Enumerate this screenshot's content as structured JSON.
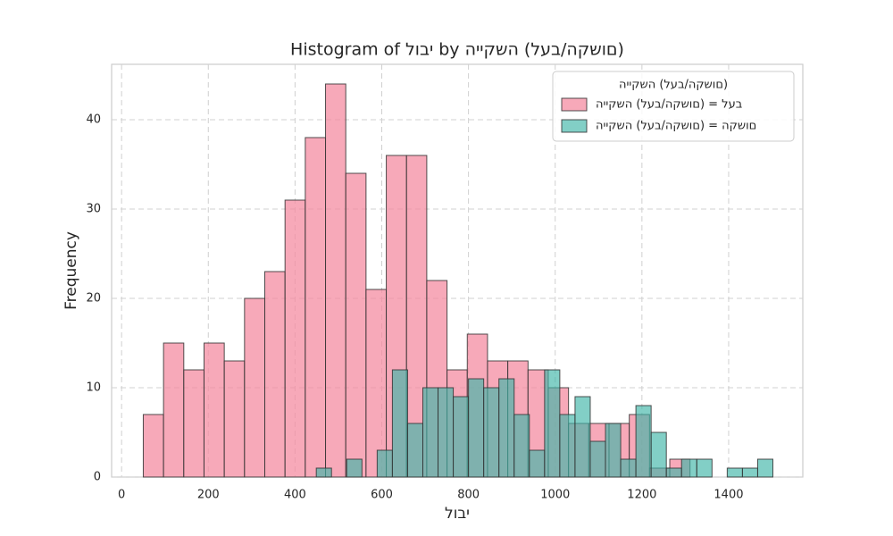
{
  "chart_data": {
    "type": "histogram",
    "title": "Histogram of לובי by הייקשה (לעב/הקשום)",
    "x_label": "לובי",
    "y_label": "Frequency",
    "legend_title": "הייקשה (לעב/הקשום)",
    "legend": "upper right",
    "grid": true,
    "xlim": [
      -23,
      1571
    ],
    "ylim": [
      0,
      46.2
    ],
    "xticks": [
      0,
      200,
      400,
      600,
      800,
      1000,
      1200,
      1400
    ],
    "yticks": [
      0,
      10,
      20,
      30,
      40
    ],
    "series": [
      {
        "name": "הייקשה (לעב/הקשום) = לעב",
        "color": "#f48ca2",
        "bins": [
          50,
          96.7,
          143.4,
          190.1,
          236.8,
          283.5,
          330.2,
          376.9,
          423.6,
          470.3,
          517,
          563.7,
          610.4,
          657.1,
          703.8,
          750.5,
          797.2,
          843.9,
          890.6,
          937.3,
          984,
          1030.7,
          1077.4,
          1124.1,
          1170.8,
          1217.5,
          1264.2,
          1310.9
        ],
        "values": [
          7,
          15,
          12,
          15,
          13,
          20,
          23,
          31,
          38,
          44,
          34,
          21,
          36,
          36,
          22,
          12,
          16,
          13,
          13,
          12,
          10,
          6,
          6,
          6,
          7,
          1,
          2
        ]
      },
      {
        "name": "הייקשה (לעב/הקשום) = הקשום",
        "color": "#3fb5a8",
        "bins": [
          449,
          484.1,
          519.2,
          554.3,
          589.4,
          624.5,
          659.6,
          694.7,
          729.8,
          764.9,
          800,
          835.1,
          870.2,
          905.3,
          940.4,
          975.5,
          1010.6,
          1045.7,
          1080.8,
          1115.9,
          1151,
          1186.1,
          1221.2,
          1256.3,
          1291.4,
          1326.5,
          1361.6,
          1396.7,
          1431.8,
          1466.9,
          1502
        ],
        "values": [
          1,
          0,
          2,
          0,
          3,
          12,
          6,
          10,
          10,
          9,
          11,
          10,
          11,
          7,
          3,
          12,
          7,
          9,
          4,
          6,
          2,
          8,
          5,
          1,
          2,
          2,
          0,
          1,
          1,
          2
        ]
      }
    ]
  }
}
